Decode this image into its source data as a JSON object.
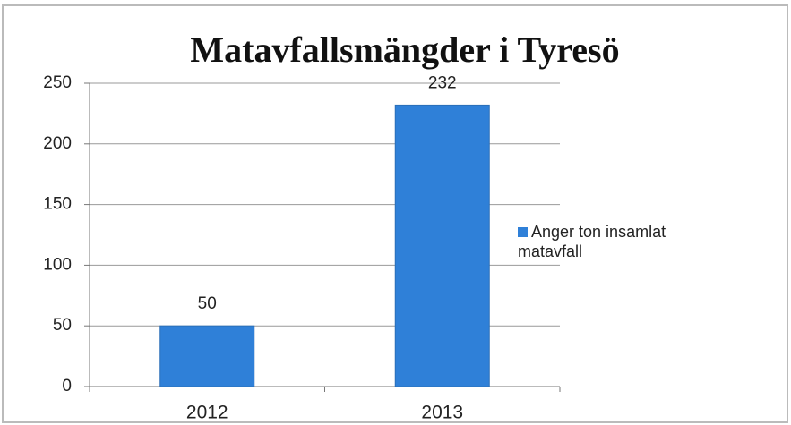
{
  "chart_data": {
    "type": "bar",
    "title": "Matavfallsmängder  i Tyresö",
    "categories": [
      "2012",
      "2013"
    ],
    "series": [
      {
        "name": "Anger ton insamlat matavfall",
        "color": "#2f80d8",
        "values": [
          50,
          232
        ]
      }
    ],
    "ylim": [
      0,
      250
    ],
    "yticks": [
      0,
      50,
      100,
      150,
      200,
      250
    ],
    "grid": true,
    "legend": "right"
  }
}
